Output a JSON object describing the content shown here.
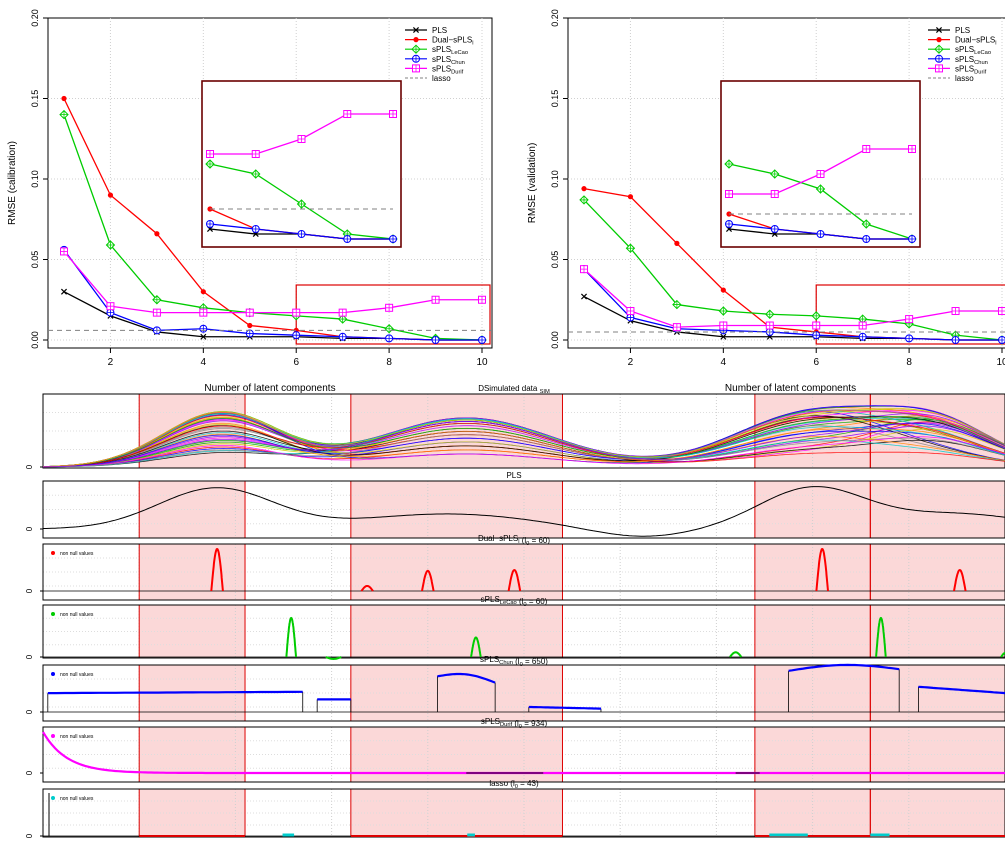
{
  "colors": {
    "PLS": "#000000",
    "Dual-sPLS": "#ff0000",
    "sPLS_LeCao": "#00cc00",
    "sPLS_Chun": "#0000ff",
    "sPLS_Durif": "#ff00ff",
    "lasso": "#808080",
    "region_fill": "#fbd8d8",
    "region_border": "#dd0000",
    "inset_border": "#6b0000",
    "lasso_curve": "#00cccc"
  },
  "chart_data": [
    {
      "type": "line",
      "ylabel": "RMSE (calibration)",
      "xlabel": "Number of latent components",
      "x": [
        1,
        2,
        3,
        4,
        5,
        6,
        7,
        8,
        9,
        10
      ],
      "xticks": [
        "2",
        "4",
        "6",
        "8",
        "10"
      ],
      "yticks": [
        "0.00",
        "0.05",
        "0.10",
        "0.15",
        "0.20"
      ],
      "xlim": [
        1,
        10
      ],
      "ylim": [
        0,
        0.2
      ],
      "grid": true,
      "legend_position": "top-right",
      "series": [
        {
          "name": "PLS",
          "values": [
            0.03,
            0.015,
            0.005,
            0.002,
            0.002,
            0.002,
            0.001,
            0.001,
            0.0,
            0.0
          ]
        },
        {
          "name": "Dual-sPLS",
          "values": [
            0.15,
            0.09,
            0.066,
            0.03,
            0.009,
            0.006,
            0.002,
            0.001,
            0.0,
            0.0
          ]
        },
        {
          "name": "sPLS_LeCao",
          "values": [
            0.14,
            0.059,
            0.025,
            0.02,
            0.017,
            0.015,
            0.013,
            0.007,
            0.001,
            0.0
          ]
        },
        {
          "name": "sPLS_Chun",
          "values": [
            0.056,
            0.017,
            0.006,
            0.007,
            0.004,
            0.003,
            0.002,
            0.001,
            0.0,
            0.0
          ]
        },
        {
          "name": "sPLS_Durif",
          "values": [
            0.055,
            0.021,
            0.017,
            0.017,
            0.017,
            0.017,
            0.017,
            0.02,
            0.025,
            0.025
          ]
        },
        {
          "name": "lasso",
          "values": [
            0.006,
            0.006,
            0.006,
            0.006,
            0.006,
            0.006,
            0.006,
            0.006,
            0.006,
            0.006
          ]
        }
      ]
    },
    {
      "type": "line",
      "ylabel": "RMSE (validation)",
      "xlabel": "Number of latent components",
      "x": [
        1,
        2,
        3,
        4,
        5,
        6,
        7,
        8,
        9,
        10
      ],
      "xticks": [
        "2",
        "4",
        "6",
        "8",
        "10"
      ],
      "yticks": [
        "0.00",
        "0.05",
        "0.10",
        "0.15",
        "0.20"
      ],
      "xlim": [
        1,
        10
      ],
      "ylim": [
        0,
        0.2
      ],
      "grid": true,
      "legend_position": "top-right",
      "series": [
        {
          "name": "PLS",
          "values": [
            0.027,
            0.012,
            0.005,
            0.002,
            0.002,
            0.002,
            0.001,
            0.001,
            0.0,
            0.0
          ]
        },
        {
          "name": "Dual-sPLS",
          "values": [
            0.094,
            0.089,
            0.06,
            0.031,
            0.008,
            0.005,
            0.002,
            0.001,
            0.0,
            0.0
          ]
        },
        {
          "name": "sPLS_LeCao",
          "values": [
            0.087,
            0.057,
            0.022,
            0.018,
            0.016,
            0.015,
            0.013,
            0.01,
            0.003,
            0.0
          ]
        },
        {
          "name": "sPLS_Chun",
          "values": [
            0.044,
            0.014,
            0.007,
            0.006,
            0.005,
            0.003,
            0.002,
            0.001,
            0.0,
            0.0
          ]
        },
        {
          "name": "sPLS_Durif",
          "values": [
            0.044,
            0.018,
            0.008,
            0.009,
            0.009,
            0.009,
            0.009,
            0.013,
            0.018,
            0.018
          ]
        },
        {
          "name": "lasso",
          "values": [
            0.005,
            0.005,
            0.005,
            0.005,
            0.005,
            0.005,
            0.005,
            0.005,
            0.005,
            0.005
          ]
        }
      ]
    },
    {
      "type": "line",
      "panels": [
        {
          "title_main": "Simulated data ",
          "title_sub": "SIM",
          "title_tail": "",
          "title_pre": "D",
          "legend": ""
        },
        {
          "title_main": "PLS",
          "title_sub": "",
          "title_tail": "",
          "title_pre": "",
          "legend": ""
        },
        {
          "title_main": "Dual−sPLS",
          "title_sub": "l",
          "title_tail": " (l",
          "title_tail_sub": "0",
          "title_tail_end": " = 60)",
          "legend": "non null values"
        },
        {
          "title_main": "sPLS",
          "title_sub": "LeCao",
          "title_tail": " (l",
          "title_tail_sub": "0",
          "title_tail_end": " = 60)",
          "legend": "non null values"
        },
        {
          "title_main": "sPLS",
          "title_sub": "Chun",
          "title_tail": " (l",
          "title_tail_sub": "0",
          "title_tail_end": " = 650)",
          "legend": "non null values"
        },
        {
          "title_main": "sPLS",
          "title_sub": "Durif",
          "title_tail": " (l",
          "title_tail_sub": "0",
          "title_tail_end": " = 934)",
          "legend": "non null values"
        },
        {
          "title_main": "lasso",
          "title_sub": "",
          "title_tail": " (l",
          "title_tail_sub": "0",
          "title_tail_end": " = 43)",
          "legend": "non null values"
        }
      ],
      "ytick": "0",
      "highlight_regions": [
        [
          0.1,
          0.21
        ],
        [
          0.32,
          0.54
        ],
        [
          0.74,
          0.86
        ],
        [
          0.86,
          1.0
        ]
      ]
    }
  ],
  "legend": {
    "labels": [
      {
        "main": "PLS",
        "sub": ""
      },
      {
        "main": "Dual−sPLS",
        "sub": "l"
      },
      {
        "main": "sPLS",
        "sub": "LeCao"
      },
      {
        "main": "sPLS",
        "sub": "Chun"
      },
      {
        "main": "sPLS",
        "sub": "Durif"
      },
      {
        "main": "lasso",
        "sub": ""
      }
    ]
  }
}
